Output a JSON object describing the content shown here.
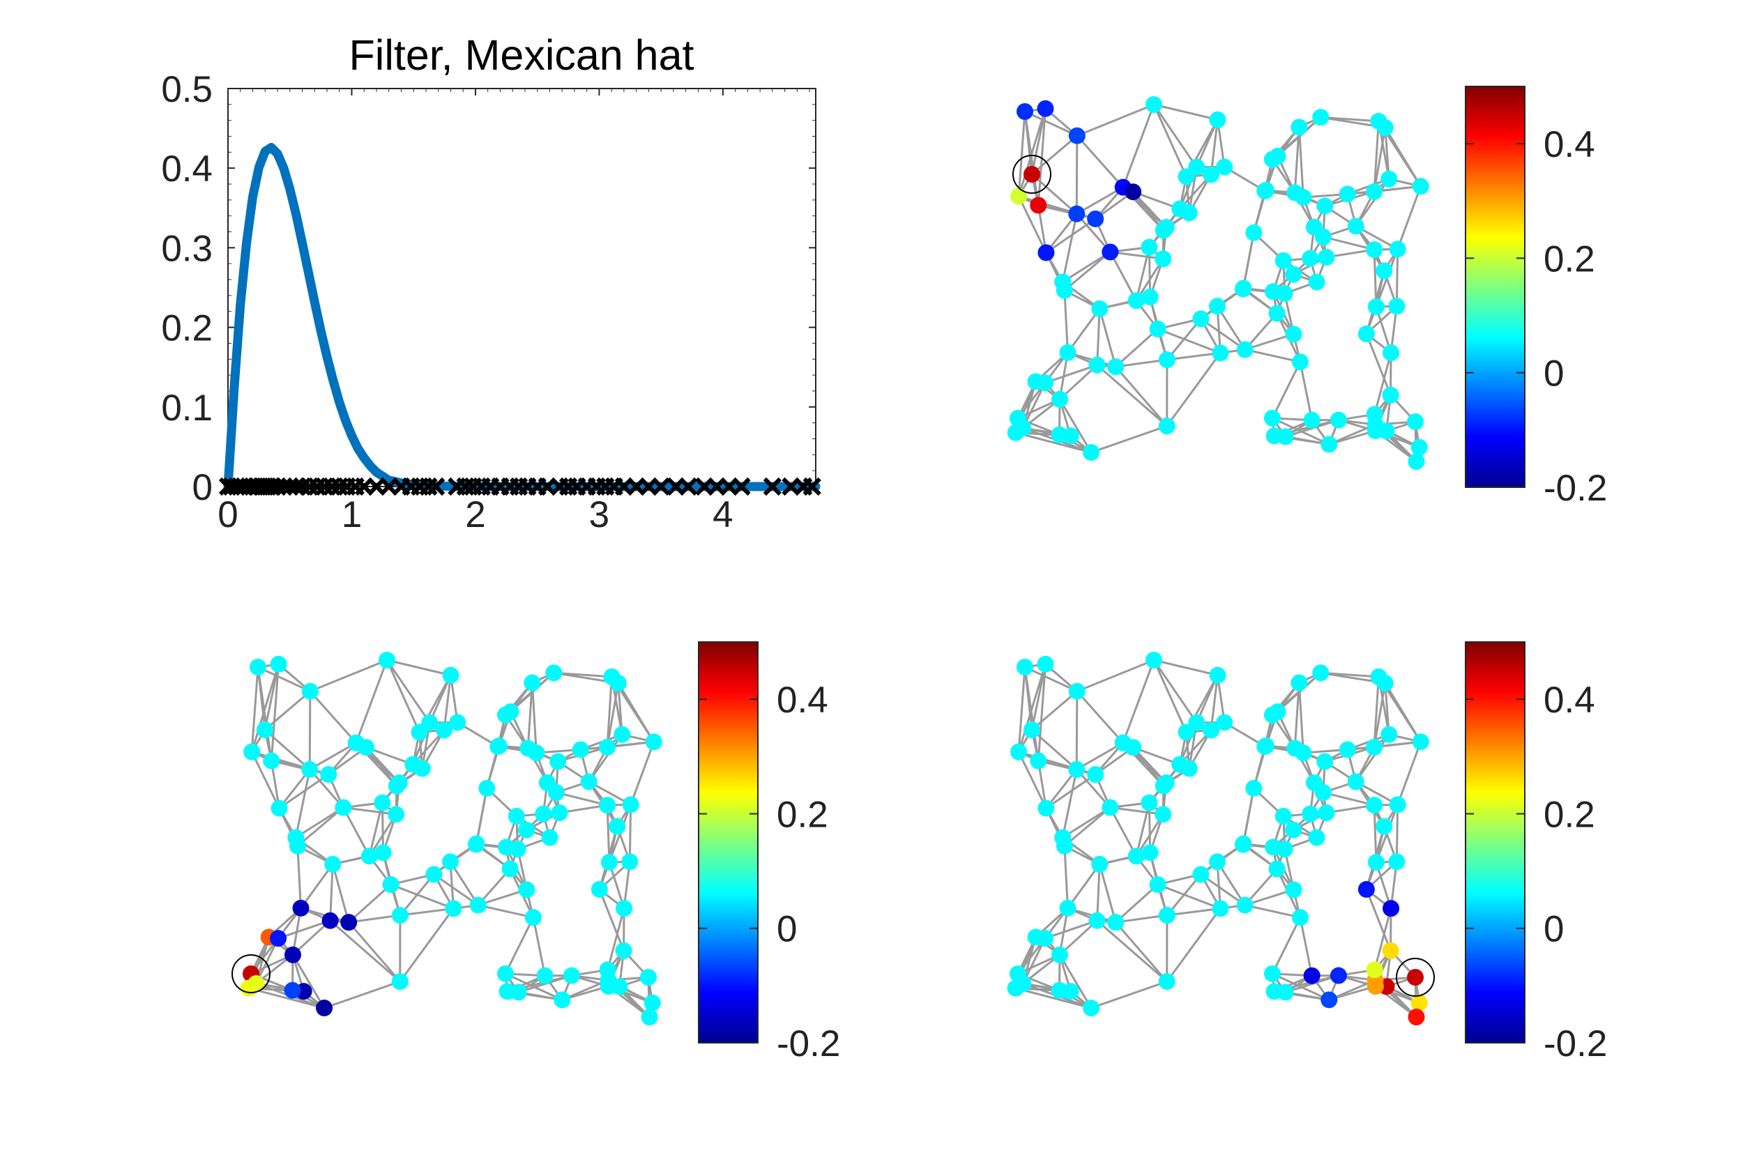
{
  "chart_data": [
    {
      "type": "line",
      "title": "Filter, Mexican hat",
      "xlabel": "",
      "ylabel": "",
      "xlim": [
        0,
        4.75
      ],
      "ylim": [
        0,
        0.5
      ],
      "xticks": [
        "0",
        "1",
        "2",
        "3",
        "4"
      ],
      "yticks": [
        "0",
        "0.1",
        "0.2",
        "0.3",
        "0.4",
        "0.5"
      ],
      "grid": false,
      "series": [
        {
          "color": "#0072BD",
          "x": [
            0,
            0.05,
            0.1,
            0.15,
            0.2,
            0.25,
            0.3,
            0.35,
            0.4,
            0.45,
            0.5,
            0.55,
            0.6,
            0.65,
            0.7,
            0.75,
            0.8,
            0.85,
            0.9,
            0.95,
            1.0,
            1.05,
            1.1,
            1.15,
            1.2,
            1.3,
            1.5,
            2.0,
            3.0,
            4.0,
            4.75
          ],
          "y": [
            0,
            0.124,
            0.228,
            0.306,
            0.364,
            0.401,
            0.421,
            0.426,
            0.418,
            0.4,
            0.374,
            0.342,
            0.306,
            0.269,
            0.232,
            0.196,
            0.163,
            0.133,
            0.106,
            0.083,
            0.064,
            0.048,
            0.036,
            0.026,
            0.018,
            0.008,
            0.001,
            0,
            0,
            0,
            0
          ]
        }
      ],
      "eigenvalue_markers": [
        0.0,
        0.03,
        0.07,
        0.1,
        0.13,
        0.17,
        0.2,
        0.24,
        0.28,
        0.32,
        0.36,
        0.4,
        0.45,
        0.5,
        0.55,
        0.6,
        0.66,
        0.72,
        0.78,
        0.84,
        0.9,
        0.96,
        1.03,
        1.1,
        1.2,
        1.3,
        1.4,
        1.48,
        1.55,
        1.62,
        1.68,
        1.85,
        1.92,
        1.98,
        2.05,
        2.12,
        2.2,
        2.28,
        2.35,
        2.42,
        2.5,
        2.58,
        2.68,
        2.75,
        2.82,
        2.9,
        2.98,
        3.05,
        3.12,
        3.2,
        3.3,
        3.4,
        3.5,
        3.62,
        3.72,
        3.85,
        3.95,
        4.05,
        4.15,
        4.4,
        4.55,
        4.65,
        4.72
      ]
    },
    {
      "type": "scatter",
      "colorbar": {
        "min": -0.2,
        "max": 0.5,
        "ticks": [
          "0.4",
          "0.2",
          "0",
          "-0.2"
        ],
        "colormap": "jet"
      },
      "edge_color": "#999999"
    },
    {
      "type": "scatter",
      "colorbar": {
        "min": -0.2,
        "max": 0.5,
        "ticks": [
          "0.4",
          "0.2",
          "0",
          "-0.2"
        ],
        "colormap": "jet"
      },
      "edge_color": "#999999"
    },
    {
      "type": "scatter",
      "colorbar": {
        "min": -0.2,
        "max": 0.5,
        "ticks": [
          "0.4",
          "0.2",
          "0",
          "-0.2"
        ],
        "colormap": "jet"
      },
      "edge_color": "#999999"
    }
  ]
}
